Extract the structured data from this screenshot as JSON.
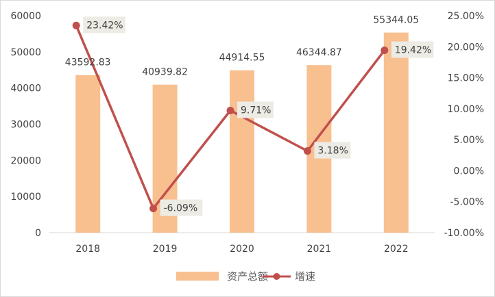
{
  "chart_data": {
    "type": "bar+line",
    "categories": [
      "2018",
      "2019",
      "2020",
      "2021",
      "2022"
    ],
    "series": [
      {
        "name": "资产总额",
        "type": "bar",
        "axis": "left",
        "values": [
          43592.83,
          40939.82,
          44914.55,
          46344.87,
          55344.05
        ],
        "labels": [
          "43592.83",
          "40939.82",
          "44914.55",
          "46344.87",
          "55344.05"
        ],
        "color": "#f8c08f"
      },
      {
        "name": "增速",
        "type": "line",
        "axis": "right",
        "values": [
          23.42,
          -6.09,
          9.71,
          3.18,
          19.42
        ],
        "labels": [
          "23.42%",
          "-6.09%",
          "9.71%",
          "3.18%",
          "19.42%"
        ],
        "color": "#c0504d"
      }
    ],
    "y_left": {
      "range": [
        0,
        60000
      ],
      "ticks": [
        "0",
        "10000",
        "20000",
        "30000",
        "40000",
        "50000",
        "60000"
      ]
    },
    "y_right": {
      "range": [
        -10,
        25
      ],
      "ticks": [
        "-10.00%",
        "-5.00%",
        "0.00%",
        "5.00%",
        "10.00%",
        "15.00%",
        "20.00%",
        "25.00%"
      ]
    },
    "grid": false,
    "legend": "bottom",
    "label_box_color": "#ecebe4"
  }
}
